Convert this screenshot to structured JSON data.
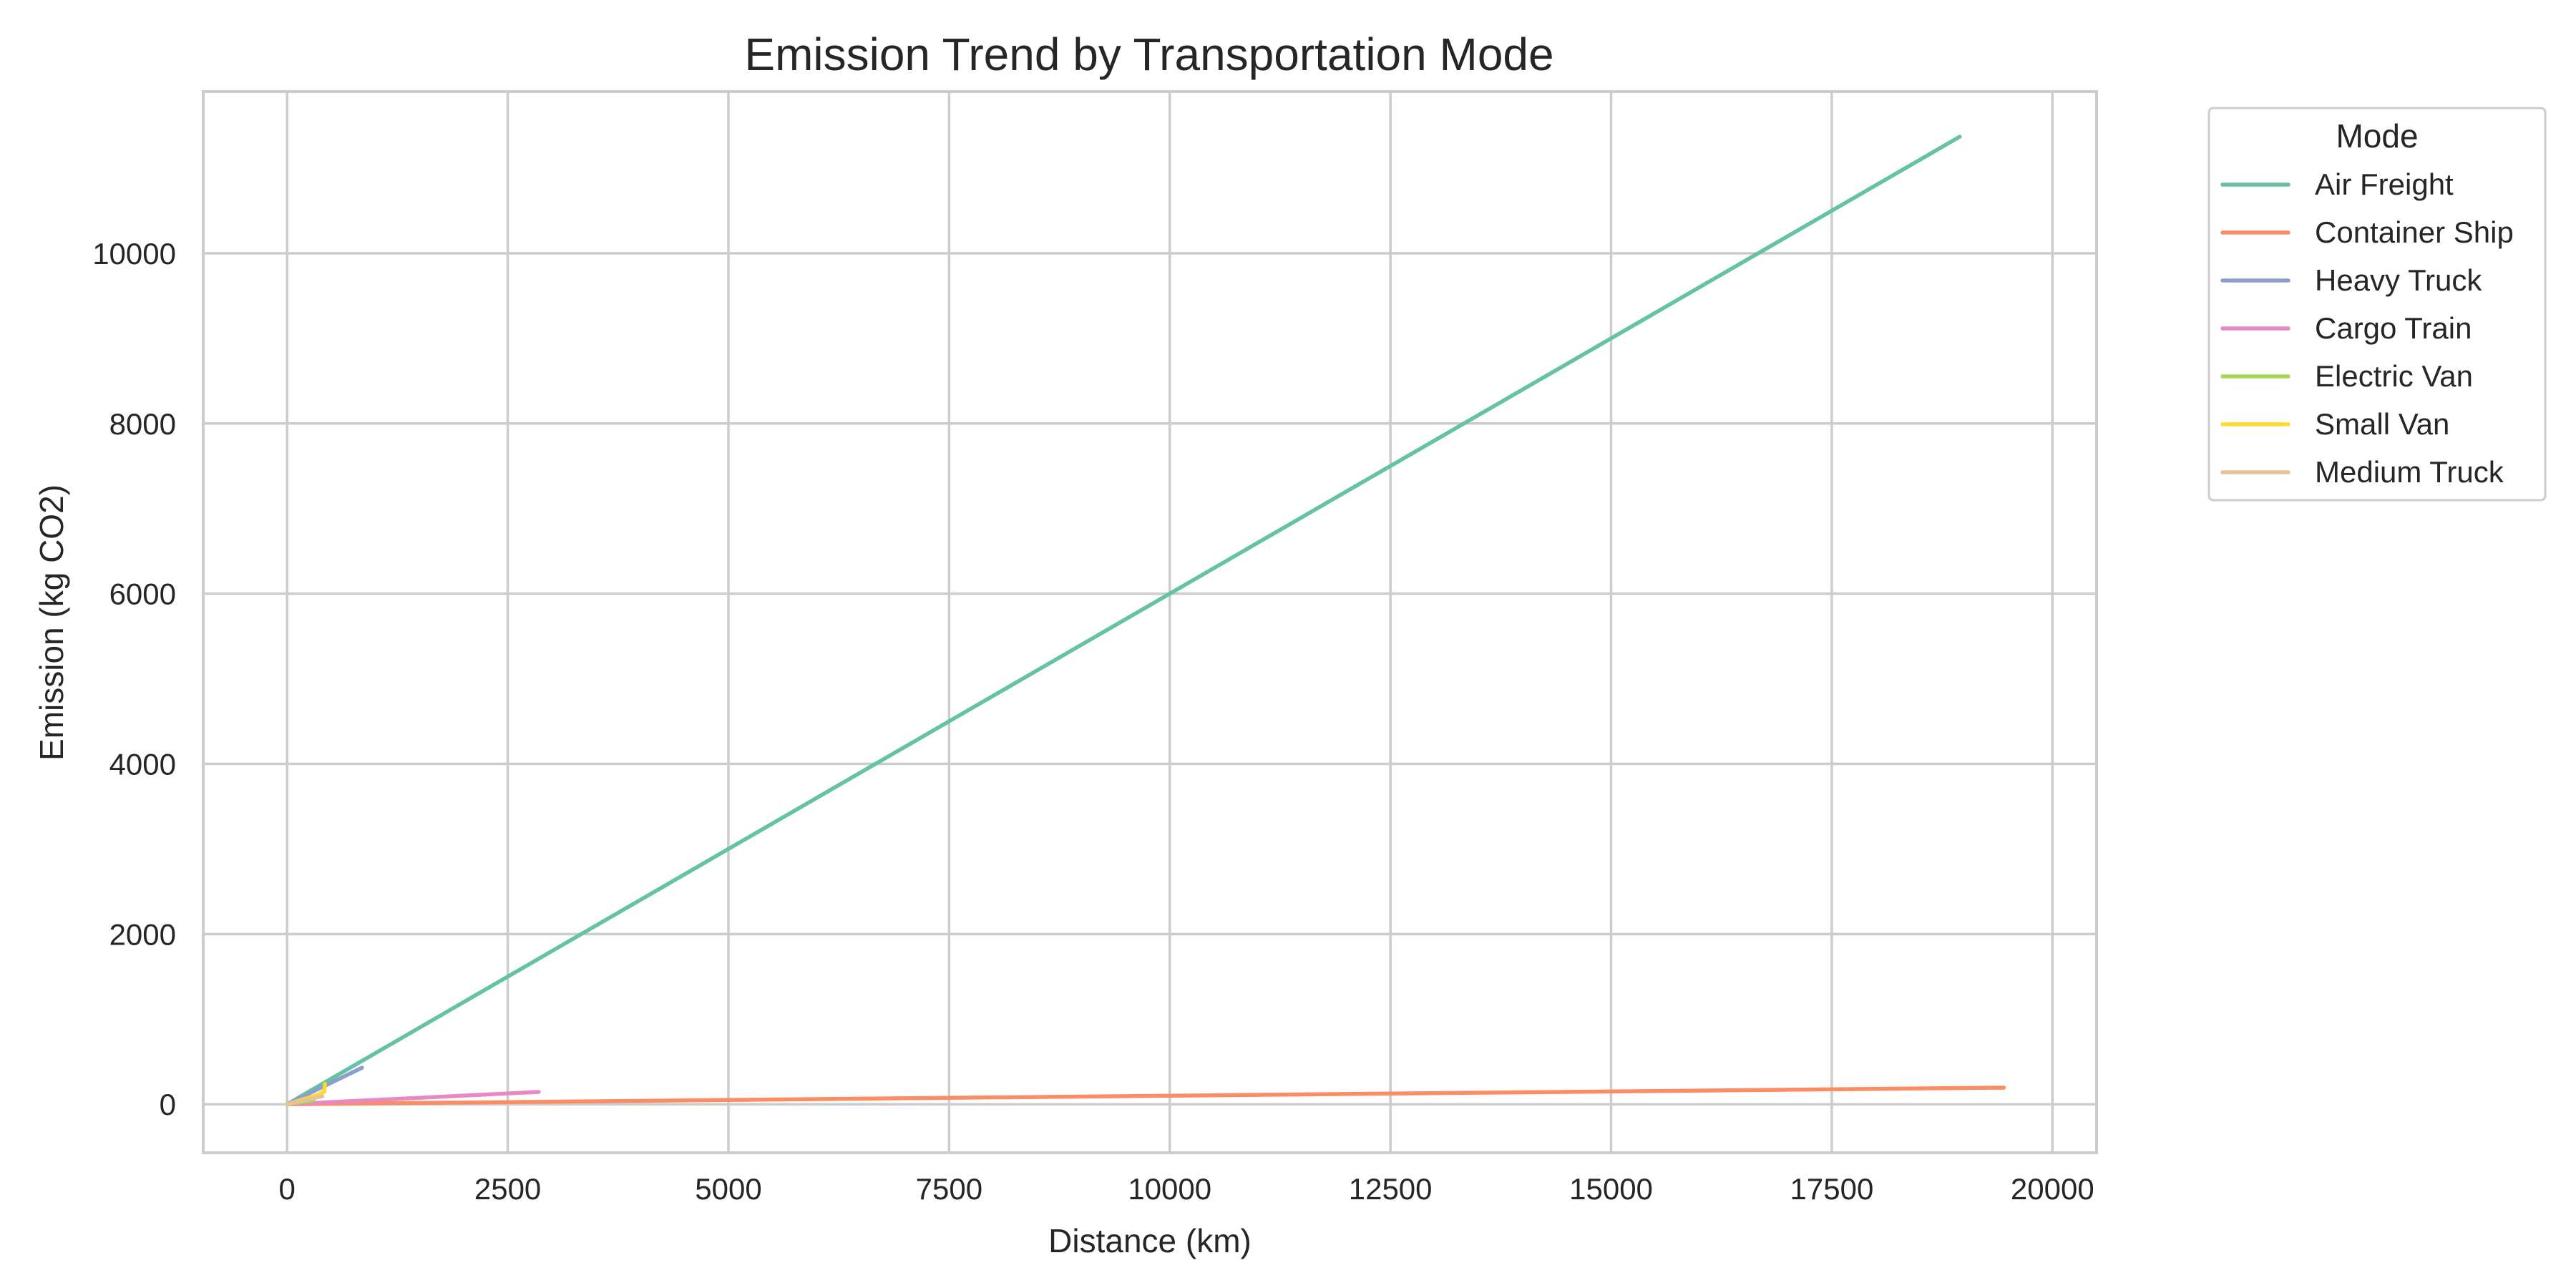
{
  "chart_data": {
    "type": "line",
    "title": "Emission Trend by Transportation Mode",
    "xlabel": "Distance (km)",
    "ylabel": "Emission (kg CO2)",
    "xlim": [
      -950,
      20500
    ],
    "ylim": [
      -570,
      11900
    ],
    "x_ticks": [
      0,
      2500,
      5000,
      7500,
      10000,
      12500,
      15000,
      17500,
      20000
    ],
    "y_ticks": [
      0,
      2000,
      4000,
      6000,
      8000,
      10000
    ],
    "grid": true,
    "legend": {
      "title": "Mode",
      "placement": "outside-top-right"
    },
    "series": [
      {
        "name": "Air Freight",
        "color": "#66c2a5",
        "points": [
          [
            0,
            0
          ],
          [
            18950,
            11370
          ]
        ]
      },
      {
        "name": "Container Ship",
        "color": "#fc8d62",
        "points": [
          [
            0,
            0
          ],
          [
            19450,
            195
          ]
        ]
      },
      {
        "name": "Heavy Truck",
        "color": "#8da0cb",
        "points": [
          [
            0,
            0
          ],
          [
            850,
            430
          ]
        ]
      },
      {
        "name": "Cargo Train",
        "color": "#e78ac3",
        "points": [
          [
            0,
            0
          ],
          [
            2850,
            145
          ]
        ]
      },
      {
        "name": "Electric Van",
        "color": "#a6d854",
        "points": [
          [
            0,
            0
          ],
          [
            300,
            45
          ]
        ]
      },
      {
        "name": "Small Van",
        "color": "#ffd92f",
        "points": [
          [
            0,
            0
          ],
          [
            350,
            110
          ],
          [
            420,
            150
          ],
          [
            430,
            240
          ]
        ]
      },
      {
        "name": "Medium Truck",
        "color": "#e5c494",
        "points": [
          [
            0,
            0
          ],
          [
            400,
            95
          ]
        ]
      }
    ]
  }
}
